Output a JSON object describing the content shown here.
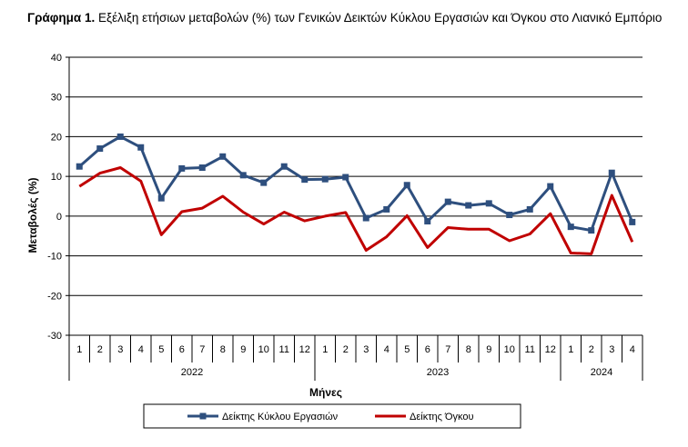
{
  "title": {
    "prefix": "Γράφημα 1.",
    "text": "Εξέλιξη ετήσιων μεταβολών (%) των Γενικών Δεικτών Κύκλου Εργασιών και Όγκου στο Λιανικό Εμπόριο"
  },
  "chart_data": {
    "type": "line",
    "ylabel": "Μεταβολές (%)",
    "xlabel": "Μήνες",
    "ylim": [
      -30,
      40
    ],
    "yticks": [
      -30,
      -20,
      -10,
      0,
      10,
      20,
      30,
      40
    ],
    "grid": true,
    "legend_position": "bottom",
    "categories": [
      "1",
      "2",
      "3",
      "4",
      "5",
      "6",
      "7",
      "8",
      "9",
      "10",
      "11",
      "12",
      "1",
      "2",
      "3",
      "4",
      "5",
      "6",
      "7",
      "8",
      "9",
      "10",
      "11",
      "12",
      "1",
      "2",
      "3",
      "4"
    ],
    "year_groups": [
      {
        "label": "2022",
        "count": 12
      },
      {
        "label": "2023",
        "count": 12
      },
      {
        "label": "2024",
        "count": 4
      }
    ],
    "series": [
      {
        "name": "Δείκτης Κύκλου Εργασιών",
        "color": "#2e4f7e",
        "marker": "square",
        "values": [
          12.5,
          17,
          20,
          17.3,
          4.5,
          12,
          12.2,
          15,
          10.3,
          8.4,
          12.5,
          9.2,
          9.3,
          9.8,
          -0.5,
          1.7,
          7.8,
          -1.3,
          3.6,
          2.7,
          3.2,
          0.3,
          1.7,
          7.5,
          -2.7,
          -3.6,
          10.9,
          -1.5
        ]
      },
      {
        "name": "Δείκτης Όγκου",
        "color": "#c00000",
        "marker": "none",
        "values": [
          7.5,
          10.8,
          12.2,
          8.8,
          -4.7,
          1.1,
          2,
          5,
          1,
          -2,
          1,
          -1.2,
          0,
          0.9,
          -8.6,
          -5.2,
          0.1,
          -7.9,
          -2.9,
          -3.3,
          -3.3,
          -6.2,
          -4.5,
          0.6,
          -9.3,
          -9.5,
          5.2,
          -6.5
        ]
      }
    ]
  }
}
